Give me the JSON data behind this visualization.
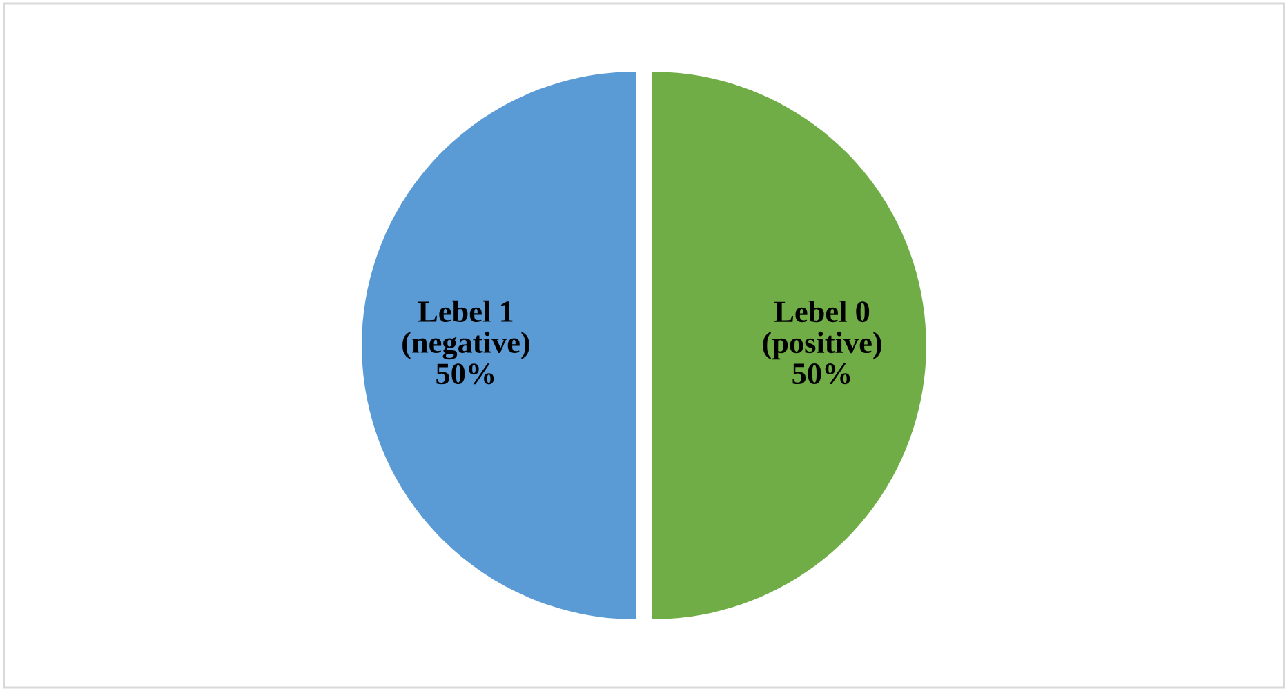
{
  "chart_data": {
    "type": "pie",
    "categories": [
      "Lebel 0\n(positive)",
      "Lebel 1\n(negative)"
    ],
    "values": [
      50,
      50
    ],
    "colors": [
      "#70ad47",
      "#5b9bd5"
    ],
    "value_labels": [
      "50%",
      "50%"
    ],
    "legend": false
  }
}
